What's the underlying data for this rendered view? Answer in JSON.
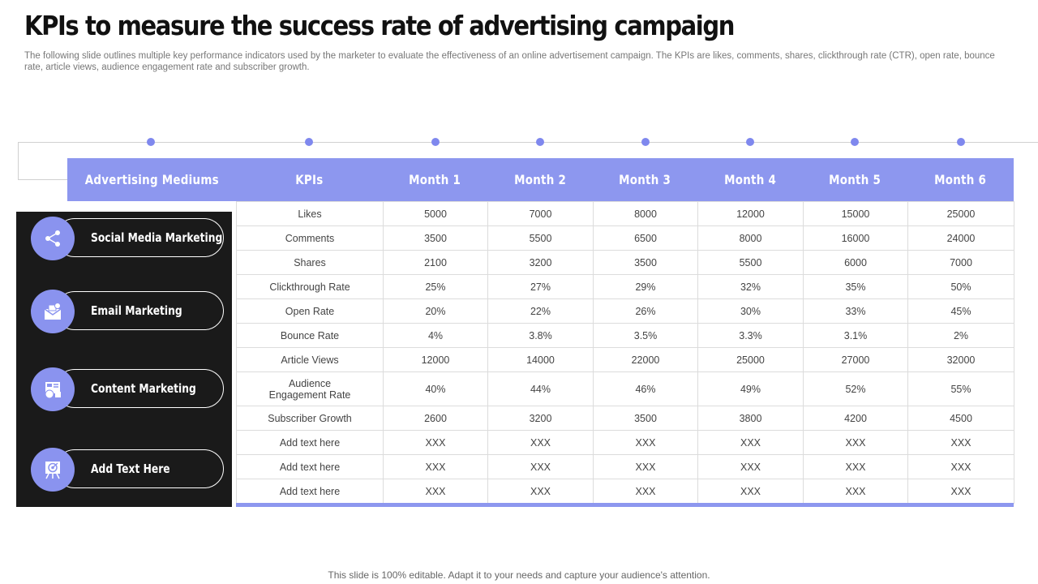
{
  "title": "KPIs to measure the success rate of advertising campaign",
  "subtitle": "The following slide outlines multiple key performance indicators used by the marketer to evaluate the effectiveness of an online advertisement campaign. The KPIs are likes, comments, shares, clickthrough rate (CTR), open rate, bounce rate, article views, audience engagement rate and subscriber growth.",
  "header": {
    "mediums": "Advertising Mediums",
    "kpis": "KPIs",
    "months": [
      "Month 1",
      "Month 2",
      "Month 3",
      "Month 4",
      "Month 5",
      "Month 6"
    ]
  },
  "mediums": [
    {
      "label": "Social Media Marketing",
      "icon": "share-icon"
    },
    {
      "label": "Email Marketing",
      "icon": "email-icon"
    },
    {
      "label": "Content Marketing",
      "icon": "content-icon"
    },
    {
      "label": "Add Text Here",
      "icon": "target-icon"
    }
  ],
  "rows": [
    {
      "kpi": "Likes",
      "values": [
        "5000",
        "7000",
        "8000",
        "12000",
        "15000",
        "25000"
      ]
    },
    {
      "kpi": "Comments",
      "values": [
        "3500",
        "5500",
        "6500",
        "8000",
        "16000",
        "24000"
      ]
    },
    {
      "kpi": "Shares",
      "values": [
        "2100",
        "3200",
        "3500",
        "5500",
        "6000",
        "7000"
      ]
    },
    {
      "kpi": "Clickthrough Rate",
      "values": [
        "25%",
        "27%",
        "29%",
        "32%",
        "35%",
        "50%"
      ]
    },
    {
      "kpi": "Open Rate",
      "values": [
        "20%",
        "22%",
        "26%",
        "30%",
        "33%",
        "45%"
      ]
    },
    {
      "kpi": "Bounce Rate",
      "values": [
        "4%",
        "3.8%",
        "3.5%",
        "3.3%",
        "3.1%",
        "2%"
      ]
    },
    {
      "kpi": "Article Views",
      "values": [
        "12000",
        "14000",
        "22000",
        "25000",
        "27000",
        "32000"
      ]
    },
    {
      "kpi": "Audience Engagement Rate",
      "values": [
        "40%",
        "44%",
        "46%",
        "49%",
        "52%",
        "55%"
      ]
    },
    {
      "kpi": "Subscriber Growth",
      "values": [
        "2600",
        "3200",
        "3500",
        "3800",
        "4200",
        "4500"
      ]
    },
    {
      "kpi": "Add text here",
      "values": [
        "XXX",
        "XXX",
        "XXX",
        "XXX",
        "XXX",
        "XXX"
      ]
    },
    {
      "kpi": "Add text here",
      "values": [
        "XXX",
        "XXX",
        "XXX",
        "XXX",
        "XXX",
        "XXX"
      ]
    },
    {
      "kpi": "Add text here",
      "values": [
        "XXX",
        "XXX",
        "XXX",
        "XXX",
        "XXX",
        "XXX"
      ]
    }
  ],
  "footer": "This slide is 100% editable. Adapt it to your needs and capture your audience's attention.",
  "colors": {
    "accent": "#8d97ef",
    "panel": "#1a1a1a",
    "dot": "#7f88ee"
  }
}
